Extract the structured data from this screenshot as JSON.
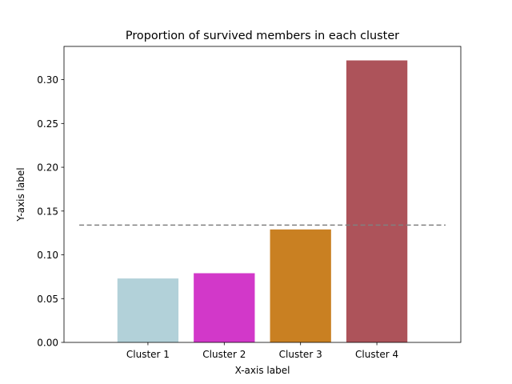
{
  "chart_data": {
    "type": "bar",
    "title": "Proportion of survived members in each cluster",
    "xlabel": "X-axis label",
    "ylabel": "Y-axis label",
    "categories": [
      "Cluster 1",
      "Cluster 2",
      "Cluster 3",
      "Cluster 4"
    ],
    "values": [
      0.073,
      0.079,
      0.129,
      0.322
    ],
    "colors": [
      "#b2d1d9",
      "#d238c9",
      "#c98022",
      "#ad535a"
    ],
    "reference_line": {
      "value": 0.134,
      "style": "dashed",
      "color": "#808080"
    },
    "ylim": [
      0,
      0.338
    ],
    "yticks": [
      0.0,
      0.05,
      0.1,
      0.15,
      0.2,
      0.25,
      0.3
    ],
    "ytick_labels": [
      "0.00",
      "0.05",
      "0.10",
      "0.15",
      "0.20",
      "0.25",
      "0.30"
    ],
    "grid": false,
    "legend": "none"
  }
}
